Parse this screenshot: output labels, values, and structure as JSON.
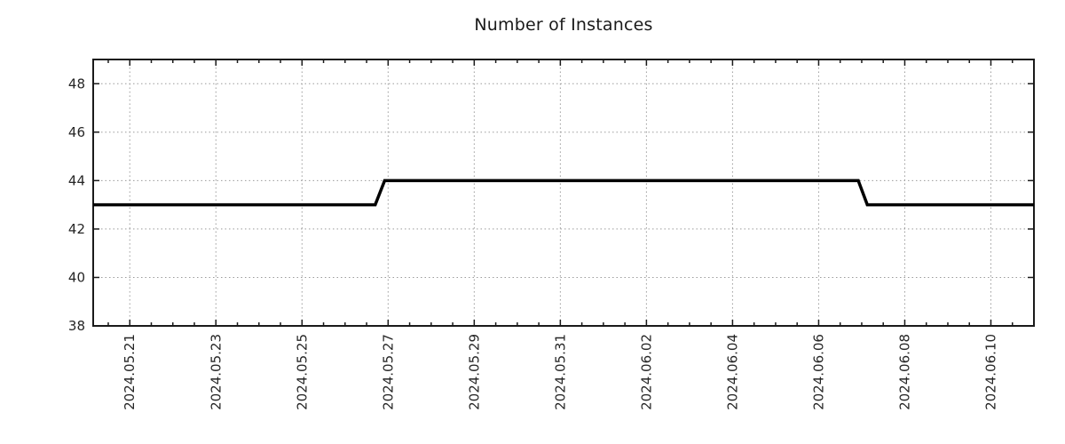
{
  "chart_data": {
    "type": "line",
    "title": "Number of Instances",
    "xlabel": "",
    "ylabel": "",
    "grid": true,
    "legend_position": "none",
    "x_axis": {
      "unit": "date",
      "min_days_since_first_tick": -0.85,
      "max_days_since_first_tick": 21.0,
      "major_tick_interval_days": 2,
      "minor_tick_interval_days": 0.5,
      "major_ticks": [
        0,
        2,
        4,
        6,
        8,
        10,
        12,
        14,
        16,
        18,
        20
      ],
      "major_tick_labels": [
        "2024.05.21",
        "2024.05.23",
        "2024.05.25",
        "2024.05.27",
        "2024.05.29",
        "2024.05.31",
        "2024.06.02",
        "2024.06.04",
        "2024.06.06",
        "2024.06.08",
        "2024.06.10"
      ]
    },
    "y_axis": {
      "min": 38,
      "max": 49,
      "major_ticks": [
        38,
        40,
        42,
        44,
        46,
        48
      ],
      "major_tick_labels": [
        "38",
        "40",
        "42",
        "44",
        "46",
        "48"
      ]
    },
    "series": [
      {
        "name": "instances",
        "line_color": "#000000",
        "line_width": 3.5,
        "points": [
          {
            "t": -0.85,
            "date": "2024-05-20T04:00",
            "value": 43
          },
          {
            "t": 5.7,
            "date": "2024-05-26T17:00",
            "value": 43
          },
          {
            "t": 5.92,
            "date": "2024-05-26T22:00",
            "value": 44
          },
          {
            "t": 16.92,
            "date": "2024-06-06T22:00",
            "value": 44
          },
          {
            "t": 17.13,
            "date": "2024-06-07T03:00",
            "value": 43
          },
          {
            "t": 21.0,
            "date": "2024-06-11T00:00",
            "value": 43
          }
        ]
      }
    ],
    "style": {
      "background": "#ffffff",
      "grid_color": "#9b9b9b",
      "axis_color": "#1a1a1a",
      "tick_label_color": "#262626",
      "tick_label_size": 15,
      "title_color": "#1a1a1a"
    }
  }
}
